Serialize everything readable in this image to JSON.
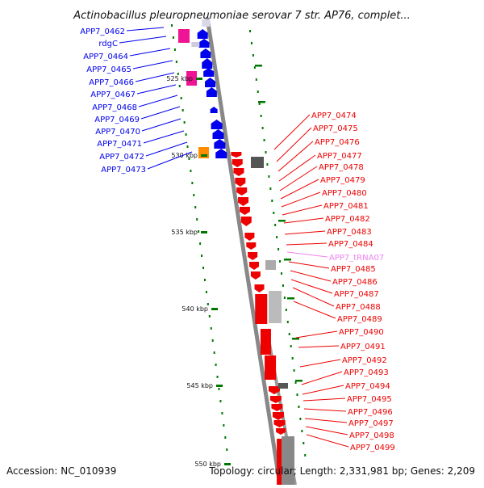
{
  "title": "Actinobacillus pleuropneumoniae serovar 7 str. AP76, complet...",
  "footer": {
    "accession": "Accession: NC_010939",
    "summary": "Topology: circular; Length: 2,331,981 bp; Genes: 2,209"
  },
  "colors": {
    "forward_gene": "#0000ee",
    "reverse_gene": "#ee0000",
    "trna": "#ee82ee",
    "pink_feature": "#ee1493",
    "orange_feature": "#ff8c00",
    "backbone": "#888888",
    "tick": "#007700"
  },
  "scale_labels": [
    "525 kbp",
    "530 kbp",
    "535 kbp",
    "540 kbp",
    "545 kbp",
    "550 kbp"
  ],
  "left_genes": [
    "APP7_0462",
    "rdgC",
    "APP7_0464",
    "APP7_0465",
    "APP7_0466",
    "APP7_0467",
    "APP7_0468",
    "APP7_0469",
    "APP7_0470",
    "APP7_0471",
    "APP7_0472",
    "APP7_0473"
  ],
  "right_genes": [
    "APP7_0474",
    "APP7_0475",
    "APP7_0476",
    "APP7_0477",
    "APP7_0478",
    "APP7_0479",
    "APP7_0480",
    "APP7_0481",
    "APP7_0482",
    "APP7_0483",
    "APP7_0484",
    "APP7_tRNA07",
    "APP7_0485",
    "APP7_0486",
    "APP7_0487",
    "APP7_0488",
    "APP7_0489",
    "APP7_0490",
    "APP7_0491",
    "APP7_0492",
    "APP7_0493",
    "APP7_0494",
    "APP7_0495",
    "APP7_0496",
    "APP7_0497",
    "APP7_0498",
    "APP7_0499"
  ]
}
